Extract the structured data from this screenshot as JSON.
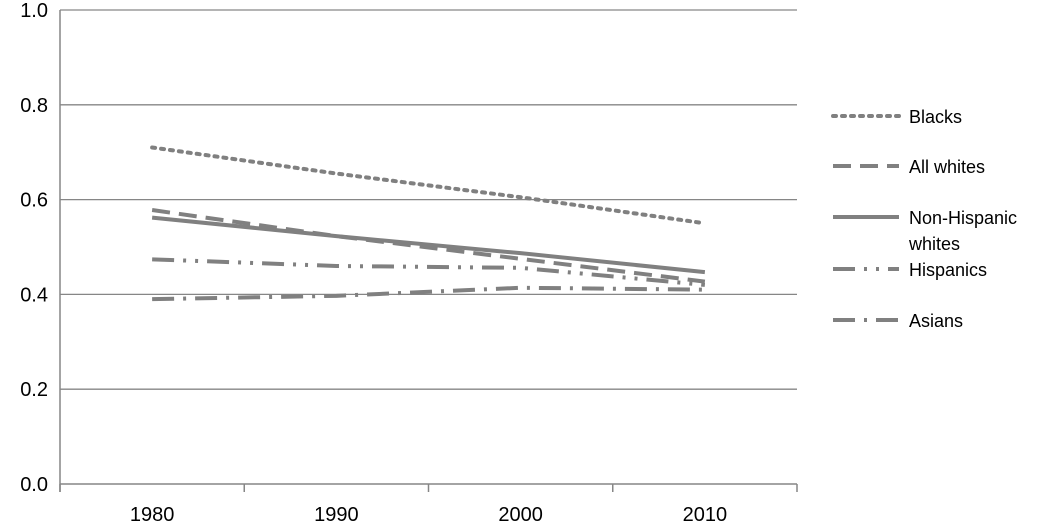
{
  "chart_data": {
    "type": "line",
    "title": "",
    "xlabel": "",
    "ylabel": "",
    "x": [
      "1980",
      "1990",
      "2000",
      "2010"
    ],
    "ylim": [
      0,
      1.0
    ],
    "yticks": [
      "0.0",
      "0.2",
      "0.4",
      "0.6",
      "0.8",
      "1.0"
    ],
    "grid": true,
    "legend_position": "right",
    "series": [
      {
        "name": "Blacks",
        "style": "dotted",
        "color": "#808080",
        "values": [
          0.71,
          0.655,
          0.605,
          0.55
        ]
      },
      {
        "name": "All whites",
        "style": "dashed",
        "color": "#808080",
        "values": [
          0.578,
          0.523,
          0.475,
          0.427
        ]
      },
      {
        "name": "Non-Hispanic whites",
        "label_lines": [
          "Non-Hispanic",
          "whites"
        ],
        "style": "solid",
        "color": "#808080",
        "values": [
          0.562,
          0.523,
          0.487,
          0.447
        ]
      },
      {
        "name": "Hispanics",
        "style": "dash-dot-dot",
        "color": "#808080",
        "values": [
          0.474,
          0.46,
          0.456,
          0.42
        ]
      },
      {
        "name": "Asians",
        "style": "dash-dot",
        "color": "#808080",
        "values": [
          0.39,
          0.397,
          0.414,
          0.41
        ]
      }
    ]
  }
}
